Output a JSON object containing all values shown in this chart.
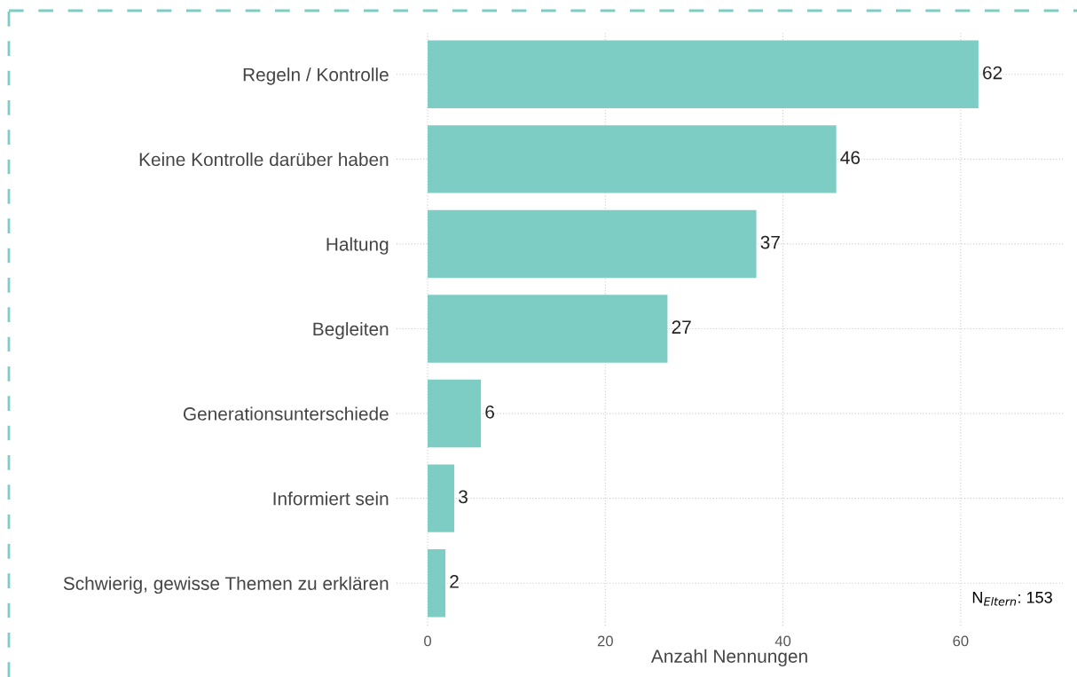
{
  "chart_data": {
    "type": "bar",
    "orientation": "horizontal",
    "xlabel": "Anzahl Nennungen",
    "categories": [
      "Regeln / Kontrolle",
      "Keine Kontrolle darüber haben",
      "Haltung",
      "Begleiten",
      "Generationsunterschiede",
      "Informiert sein",
      "Schwierig, gewisse Themen zu erklären"
    ],
    "values": [
      62,
      46,
      37,
      27,
      6,
      3,
      2
    ],
    "color": "#7ecdc4",
    "xlim": [
      -3.5,
      71.5
    ],
    "xticks": [
      0,
      20,
      40,
      60
    ],
    "grid": true,
    "data_labels": true,
    "annotations": [
      "N$_{Eltern}$: 153"
    ]
  }
}
